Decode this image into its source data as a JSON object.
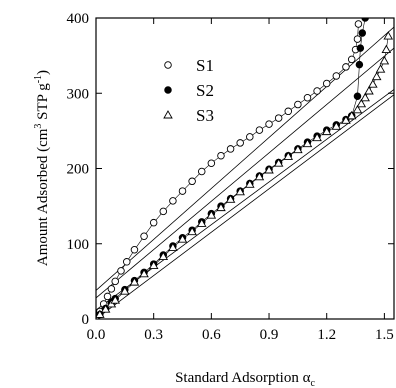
{
  "chart_data": {
    "type": "scatter",
    "xlabel": "Standard Adsorption α",
    "xlabel_subscript": "c",
    "ylabel": "Amount Adsorbed (cm",
    "ylabel_sup1": "3",
    "ylabel_mid": " STP g",
    "ylabel_sup2": "-1",
    "ylabel_end": ")",
    "xlim": [
      0.0,
      1.55
    ],
    "ylim": [
      0,
      400
    ],
    "xticks": [
      "0.0",
      "0.3",
      "0.6",
      "0.9",
      "1.2",
      "1.5"
    ],
    "xtick_values": [
      0.0,
      0.3,
      0.6,
      0.9,
      1.2,
      1.5
    ],
    "yticks": [
      "0",
      "100",
      "200",
      "300",
      "400"
    ],
    "ytick_values": [
      0,
      100,
      200,
      300,
      400
    ],
    "legend": {
      "placement": "top-left"
    },
    "series": [
      {
        "name": "S1",
        "marker": "open-circle",
        "x": [
          0.0,
          0.02,
          0.04,
          0.06,
          0.08,
          0.1,
          0.13,
          0.16,
          0.2,
          0.25,
          0.3,
          0.35,
          0.4,
          0.45,
          0.5,
          0.55,
          0.6,
          0.65,
          0.7,
          0.75,
          0.8,
          0.85,
          0.9,
          0.95,
          1.0,
          1.05,
          1.1,
          1.15,
          1.2,
          1.25,
          1.3,
          1.33,
          1.35,
          1.36,
          1.365
        ],
        "y": [
          2,
          10,
          20,
          30,
          40,
          50,
          64,
          76,
          92,
          110,
          128,
          143,
          157,
          170,
          183,
          196,
          207,
          217,
          226,
          234,
          242,
          251,
          259,
          267,
          276,
          285,
          294,
          303,
          313,
          323,
          335,
          345,
          358,
          372,
          392
        ]
      },
      {
        "name": "S2",
        "marker": "filled-circle",
        "x": [
          0.0,
          0.02,
          0.05,
          0.08,
          0.1,
          0.15,
          0.2,
          0.25,
          0.3,
          0.35,
          0.4,
          0.45,
          0.5,
          0.55,
          0.6,
          0.65,
          0.7,
          0.75,
          0.8,
          0.85,
          0.9,
          0.95,
          1.0,
          1.05,
          1.1,
          1.15,
          1.2,
          1.25,
          1.3,
          1.33,
          1.36,
          1.37,
          1.375,
          1.385,
          1.4
        ],
        "y": [
          2,
          6,
          14,
          22,
          27,
          39,
          51,
          62,
          73,
          85,
          97,
          108,
          118,
          129,
          140,
          150,
          160,
          170,
          180,
          190,
          199,
          208,
          217,
          226,
          235,
          243,
          251,
          258,
          265,
          270,
          296,
          338,
          360,
          380,
          400
        ]
      },
      {
        "name": "S3",
        "marker": "open-triangle",
        "x": [
          0.0,
          0.02,
          0.05,
          0.08,
          0.1,
          0.15,
          0.2,
          0.25,
          0.3,
          0.35,
          0.4,
          0.45,
          0.5,
          0.55,
          0.6,
          0.65,
          0.7,
          0.75,
          0.8,
          0.85,
          0.9,
          0.95,
          1.0,
          1.05,
          1.1,
          1.15,
          1.2,
          1.25,
          1.3,
          1.33,
          1.36,
          1.38,
          1.4,
          1.42,
          1.44,
          1.46,
          1.48,
          1.5,
          1.51,
          1.52
        ],
        "y": [
          2,
          6,
          13,
          20,
          25,
          37,
          49,
          60,
          71,
          83,
          95,
          106,
          116,
          127,
          138,
          148,
          159,
          169,
          179,
          189,
          198,
          207,
          216,
          225,
          233,
          241,
          249,
          256,
          264,
          270,
          278,
          286,
          294,
          303,
          312,
          322,
          332,
          343,
          358,
          376
        ]
      }
    ],
    "fit_lines": [
      {
        "x": [
          0.0,
          1.55
        ],
        "y": [
          38,
          388
        ]
      },
      {
        "x": [
          0.0,
          1.55
        ],
        "y": [
          28,
          360
        ]
      },
      {
        "x": [
          0.0,
          1.55
        ],
        "y": [
          12,
          305
        ]
      },
      {
        "x": [
          0.0,
          1.55
        ],
        "y": [
          0,
          298
        ]
      }
    ]
  }
}
